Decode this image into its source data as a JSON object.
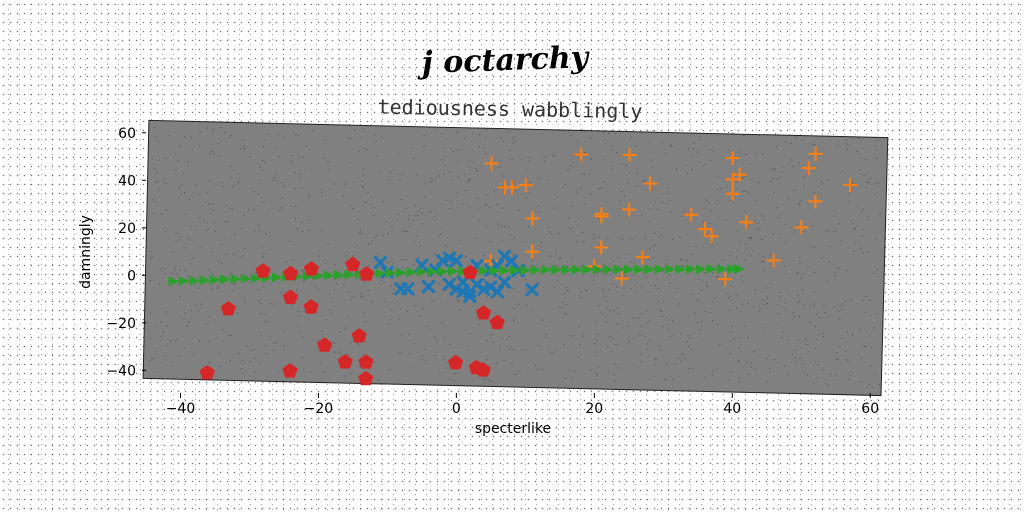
{
  "chart_data": {
    "type": "scatter",
    "title": "j octarchy",
    "subtitle": "tediousness wabblingly",
    "xlabel": "specterlike",
    "ylabel": "damningly",
    "xlim": [
      -45,
      62
    ],
    "ylim": [
      -47,
      62
    ],
    "x_ticks": [
      -40,
      -20,
      0,
      20,
      40,
      60
    ],
    "y_ticks": [
      -40,
      -20,
      0,
      20,
      40,
      60
    ],
    "x_tick_labels": [
      "−40",
      "−20",
      "0",
      "20",
      "40",
      "60"
    ],
    "y_tick_labels": [
      "−40",
      "−20",
      "0",
      "20",
      "40",
      "60"
    ],
    "grid": false,
    "background": "#808080",
    "series": [
      {
        "marker": "cross",
        "color": "#ff7f0e",
        "points": [
          [
            5,
            47
          ],
          [
            7,
            37
          ],
          [
            8,
            37
          ],
          [
            10,
            38
          ],
          [
            11,
            24
          ],
          [
            11,
            10
          ],
          [
            5,
            6
          ],
          [
            18,
            51
          ],
          [
            21,
            25
          ],
          [
            21,
            26
          ],
          [
            21,
            12
          ],
          [
            20,
            4
          ],
          [
            25,
            51
          ],
          [
            25,
            28
          ],
          [
            28,
            39
          ],
          [
            27,
            8
          ],
          [
            24,
            -1
          ],
          [
            34,
            26
          ],
          [
            36,
            20
          ],
          [
            37,
            17
          ],
          [
            40,
            50
          ],
          [
            40,
            41
          ],
          [
            40,
            35
          ],
          [
            41,
            43
          ],
          [
            42,
            23
          ],
          [
            39,
            -1
          ],
          [
            46,
            7
          ],
          [
            50,
            21
          ],
          [
            51,
            46
          ],
          [
            52,
            52
          ],
          [
            52,
            32
          ],
          [
            57,
            39
          ]
        ]
      },
      {
        "marker": "x",
        "color": "#1f77b4",
        "points": [
          [
            -11,
            5
          ],
          [
            -10,
            1
          ],
          [
            -8,
            -6
          ],
          [
            -7,
            -6
          ],
          [
            -4,
            -5
          ],
          [
            -3,
            2
          ],
          [
            -2,
            6
          ],
          [
            -1,
            7
          ],
          [
            0,
            6
          ],
          [
            -1,
            -4
          ],
          [
            0,
            -6
          ],
          [
            1,
            -7
          ],
          [
            1,
            -3
          ],
          [
            2,
            -7
          ],
          [
            2,
            -9
          ],
          [
            3,
            4
          ],
          [
            3,
            -4
          ],
          [
            4,
            -6
          ],
          [
            5,
            -5
          ],
          [
            5,
            2
          ],
          [
            6,
            4
          ],
          [
            6,
            -7
          ],
          [
            7,
            8
          ],
          [
            7,
            -3
          ],
          [
            8,
            6
          ],
          [
            9,
            2
          ],
          [
            -5,
            4
          ],
          [
            11,
            -6
          ]
        ]
      },
      {
        "marker": "triangle-right",
        "color": "#2ca02c",
        "points": [
          [
            -41,
            -3.5
          ],
          [
            -38,
            -3.2
          ],
          [
            -35,
            -2.8
          ],
          [
            -32,
            -2.4
          ],
          [
            -29,
            -2.0
          ],
          [
            -26,
            -1.6
          ],
          [
            -23,
            -1.2
          ],
          [
            -20,
            -0.8
          ],
          [
            -17,
            -0.4
          ],
          [
            -14,
            0.0
          ],
          [
            -11,
            0.4
          ],
          [
            -8,
            0.8
          ],
          [
            -5,
            1.2
          ],
          [
            -2,
            1.4
          ],
          [
            1,
            1.6
          ],
          [
            4,
            1.8
          ],
          [
            7,
            2.0
          ],
          [
            10,
            2.2
          ],
          [
            13,
            2.4
          ],
          [
            16,
            2.5
          ],
          [
            19,
            2.6
          ],
          [
            22,
            2.7
          ],
          [
            25,
            2.8
          ],
          [
            28,
            2.9
          ],
          [
            31,
            3.0
          ],
          [
            34,
            3.1
          ],
          [
            37,
            3.2
          ],
          [
            40,
            3.3
          ],
          [
            -39.5,
            -3.4
          ],
          [
            -36.5,
            -3.0
          ],
          [
            -33.5,
            -2.6
          ],
          [
            -30.5,
            -2.2
          ],
          [
            -27.5,
            -1.8
          ],
          [
            -24.5,
            -1.4
          ],
          [
            -21.5,
            -1.0
          ],
          [
            -18.5,
            -0.6
          ],
          [
            -15.5,
            -0.2
          ],
          [
            -12.5,
            0.2
          ],
          [
            -9.5,
            0.6
          ],
          [
            -6.5,
            1.0
          ],
          [
            -3.5,
            1.3
          ],
          [
            -0.5,
            1.5
          ],
          [
            2.5,
            1.7
          ],
          [
            5.5,
            1.9
          ],
          [
            8.5,
            2.1
          ],
          [
            11.5,
            2.3
          ],
          [
            14.5,
            2.45
          ],
          [
            17.5,
            2.55
          ],
          [
            20.5,
            2.65
          ],
          [
            23.5,
            2.75
          ],
          [
            26.5,
            2.85
          ],
          [
            29.5,
            2.95
          ],
          [
            32.5,
            3.05
          ],
          [
            35.5,
            3.15
          ],
          [
            38.5,
            3.25
          ],
          [
            41,
            3.35
          ]
        ]
      },
      {
        "marker": "pentagon",
        "color": "#d62728",
        "points": [
          [
            -36,
            -42
          ],
          [
            -33,
            -15
          ],
          [
            -28,
            1
          ],
          [
            -24,
            0
          ],
          [
            -24,
            -10
          ],
          [
            -24,
            -41
          ],
          [
            -21,
            2
          ],
          [
            -21,
            -14
          ],
          [
            -19,
            -30
          ],
          [
            -16,
            -37
          ],
          [
            -15,
            4
          ],
          [
            -14,
            -26
          ],
          [
            -13,
            0
          ],
          [
            -13,
            -37
          ],
          [
            -13,
            -44
          ],
          [
            0,
            -37
          ],
          [
            2,
            1
          ],
          [
            3,
            -39
          ],
          [
            4,
            -40
          ],
          [
            4,
            -16
          ],
          [
            6,
            -20
          ]
        ]
      }
    ]
  }
}
